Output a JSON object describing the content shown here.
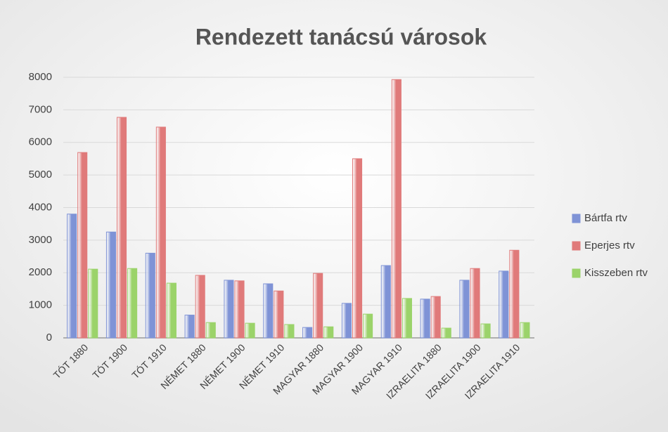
{
  "chart_data": {
    "type": "bar",
    "title": "Rendezett tanácsú városok",
    "categories": [
      "TÓT 1880",
      "TÓT 1900",
      "TÓT 1910",
      "NÉMET 1880",
      "NÉMET 1900",
      "NÉMET 1910",
      "MAGYAR 1880",
      "MAGYAR 1900",
      "MAGYAR 1910",
      "IZRAELITA 1880",
      "IZRAELITA 1900",
      "IZRAELITA 1910"
    ],
    "series": [
      {
        "name": "Bártfa rtv",
        "color": "#7f93d6",
        "values": [
          3800,
          3250,
          2600,
          700,
          1770,
          1660,
          320,
          1060,
          2220,
          1190,
          1770,
          2050
        ]
      },
      {
        "name": "Eperjes rtv",
        "color": "#e07a7a",
        "values": [
          5690,
          6770,
          6470,
          1920,
          1750,
          1440,
          1980,
          5500,
          7930,
          1270,
          2130,
          2690
        ]
      },
      {
        "name": "Kisszeben rtv",
        "color": "#9bd36a",
        "values": [
          2110,
          2130,
          1680,
          470,
          450,
          410,
          340,
          730,
          1210,
          300,
          430,
          470
        ]
      }
    ],
    "ylim": [
      0,
      8000
    ],
    "yticks": [
      0,
      1000,
      2000,
      3000,
      4000,
      5000,
      6000,
      7000,
      8000
    ],
    "grid": true,
    "legend": "right"
  }
}
